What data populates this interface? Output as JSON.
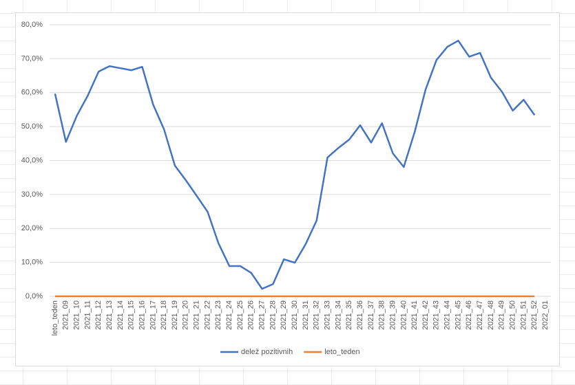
{
  "chart_data": {
    "type": "line",
    "categories": [
      "leto_teden",
      "2021_09",
      "2021_10",
      "2021_11",
      "2021_12",
      "2021_13",
      "2021_14",
      "2021_15",
      "2021_16",
      "2021_17",
      "2021_18",
      "2021_19",
      "2021_20",
      "2021_21",
      "2021_22",
      "2021_23",
      "2021_24",
      "2021_25",
      "2021_26",
      "2021_27",
      "2021_28",
      "2021_29",
      "2021_30",
      "2021_31",
      "2021_32",
      "2021_33",
      "2021_34",
      "2021_35",
      "2021_36",
      "2021_37",
      "2021_38",
      "2021_39",
      "2021_40",
      "2021_41",
      "2021_42",
      "2021_43",
      "2021_44",
      "2021_45",
      "2021_46",
      "2021_47",
      "2021_48",
      "2021_49",
      "2021_50",
      "2021_51",
      "2021_52",
      "2022_01"
    ],
    "series": [
      {
        "name": "delež pozitivnih",
        "color": "#4472c4",
        "values": [
          59.7,
          45.5,
          53.2,
          59.1,
          66.2,
          67.8,
          67.2,
          66.6,
          67.6,
          56.5,
          49.2,
          38.5,
          34.2,
          29.6,
          24.9,
          15.6,
          8.9,
          8.9,
          6.9,
          2.2,
          3.6,
          10.9,
          9.9,
          15.4,
          22.3,
          40.9,
          43.7,
          46.2,
          50.4,
          45.3,
          51.0,
          42.1,
          38.1,
          48.4,
          60.9,
          69.6,
          73.5,
          75.3,
          70.6,
          71.7,
          64.4,
          60.3,
          54.7,
          57.9,
          53.4,
          null
        ]
      },
      {
        "name": "leto_teden",
        "color": "#ed7d31",
        "values": [
          0,
          0,
          0,
          0,
          0,
          0,
          0,
          0,
          0,
          0,
          0,
          0,
          0,
          0,
          0,
          0,
          0,
          0,
          0,
          0,
          0,
          0,
          0,
          0,
          0,
          0,
          0,
          0,
          0,
          0,
          0,
          0,
          0,
          0,
          0,
          0,
          0,
          0,
          0,
          0,
          0,
          0,
          0,
          0,
          0,
          null
        ]
      }
    ],
    "ylim": [
      0,
      80
    ],
    "yticks": [
      {
        "value": 0,
        "label": "0,0%"
      },
      {
        "value": 10,
        "label": "10,0%"
      },
      {
        "value": 20,
        "label": "20,0%"
      },
      {
        "value": 30,
        "label": "30,0%"
      },
      {
        "value": 40,
        "label": "40,0%"
      },
      {
        "value": 50,
        "label": "50,0%"
      },
      {
        "value": 60,
        "label": "60,0%"
      },
      {
        "value": 70,
        "label": "70,0%"
      },
      {
        "value": 80,
        "label": "80,0%"
      }
    ],
    "grid": true,
    "legend": "bottom"
  }
}
